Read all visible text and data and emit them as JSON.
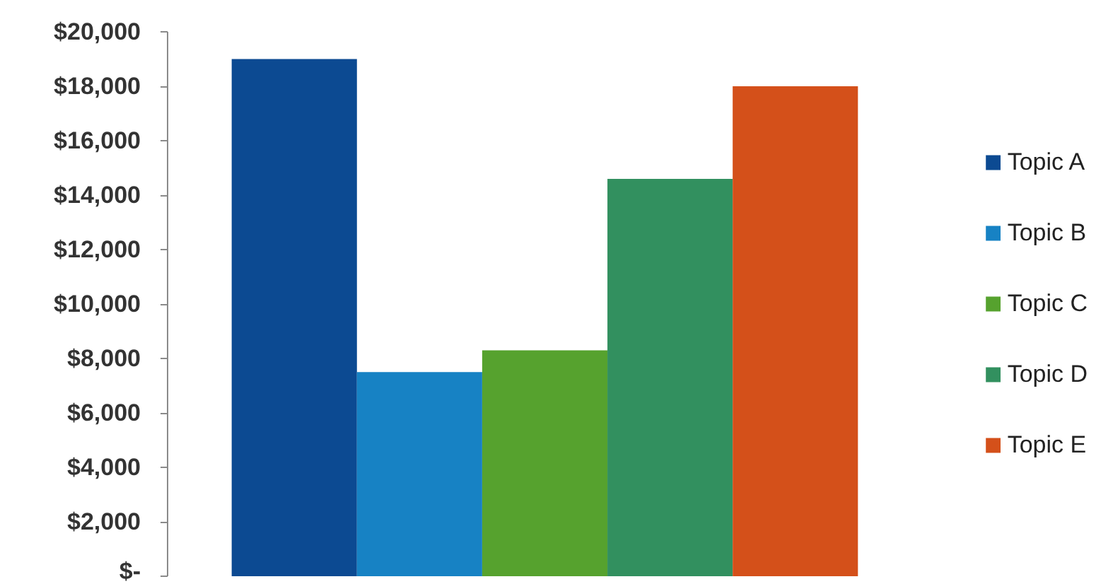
{
  "chart_data": {
    "type": "bar",
    "categories": [
      null
    ],
    "series": [
      {
        "name": "Topic A",
        "color": "#0c4a92",
        "values": [
          19000
        ]
      },
      {
        "name": "Topic B",
        "color": "#1782c4",
        "values": [
          7500
        ]
      },
      {
        "name": "Topic C",
        "color": "#56a22e",
        "values": [
          8300
        ]
      },
      {
        "name": "Topic D",
        "color": "#32905f",
        "values": [
          14600
        ]
      },
      {
        "name": "Topic E",
        "color": "#d4501a",
        "values": [
          18000
        ]
      }
    ],
    "ylim": [
      0,
      20000
    ],
    "yticks": [
      {
        "value": 0,
        "label": "$-"
      },
      {
        "value": 2000,
        "label": "$2,000"
      },
      {
        "value": 4000,
        "label": "$4,000"
      },
      {
        "value": 6000,
        "label": "$6,000"
      },
      {
        "value": 8000,
        "label": "$8,000"
      },
      {
        "value": 10000,
        "label": "$10,000"
      },
      {
        "value": 12000,
        "label": "$12,000"
      },
      {
        "value": 14000,
        "label": "$14,000"
      },
      {
        "value": 16000,
        "label": "$16,000"
      },
      {
        "value": 18000,
        "label": "$18,000"
      },
      {
        "value": 20000,
        "label": "$20,000"
      }
    ],
    "legend": "right",
    "tick_labels": "y"
  }
}
